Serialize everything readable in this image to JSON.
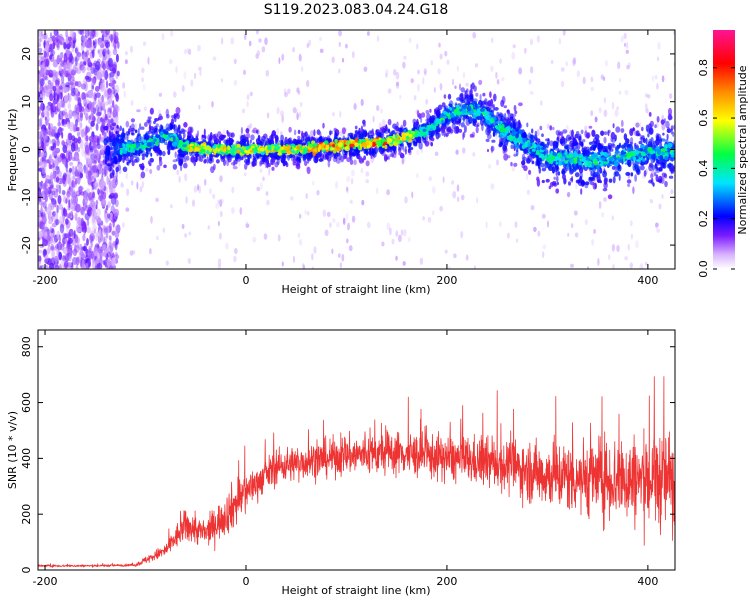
{
  "title": "S119.2023.083.04.24.G18",
  "chart_data": [
    {
      "type": "heatmap",
      "xlabel": "Height of straight line (km)",
      "ylabel": "Frequency (Hz)",
      "xlim": [
        -207,
        427
      ],
      "ylim": [
        -25,
        25
      ],
      "xticks": [
        -200,
        0,
        200,
        400
      ],
      "yticks": [
        -20,
        -10,
        0,
        10,
        20
      ],
      "colorbar": {
        "label": "Normalized spectral amplitude",
        "range": [
          0,
          0.95
        ],
        "ticks": [
          "0.0",
          "0.2",
          "0.4",
          "0.6",
          "0.8"
        ]
      },
      "ridge": {
        "x": [
          -130,
          -100,
          -80,
          -60,
          -40,
          0,
          50,
          100,
          150,
          180,
          200,
          220,
          235,
          250,
          280,
          300,
          350,
          400,
          427
        ],
        "y": [
          0,
          1,
          3,
          0.5,
          0,
          0,
          0,
          1,
          2,
          4,
          7,
          8.5,
          8,
          5,
          1,
          -1.5,
          -2.5,
          -0.5,
          -0.5
        ]
      }
    },
    {
      "type": "line",
      "xlabel": "Height of straight line (km)",
      "ylabel": "SNR (10 * v/v)",
      "xlim": [
        -207,
        427
      ],
      "ylim": [
        0,
        860
      ],
      "xticks": [
        -200,
        0,
        200,
        400
      ],
      "yticks": [
        0,
        200,
        400,
        600,
        800
      ],
      "color": "#ee3333",
      "envelope": {
        "x": [
          -207,
          -150,
          -110,
          -80,
          -60,
          -40,
          -20,
          0,
          30,
          60,
          100,
          150,
          200,
          250,
          300,
          350,
          400,
          427
        ],
        "y": [
          15,
          15,
          18,
          70,
          160,
          130,
          200,
          280,
          370,
          390,
          410,
          420,
          400,
          380,
          340,
          330,
          320,
          330
        ]
      }
    }
  ]
}
